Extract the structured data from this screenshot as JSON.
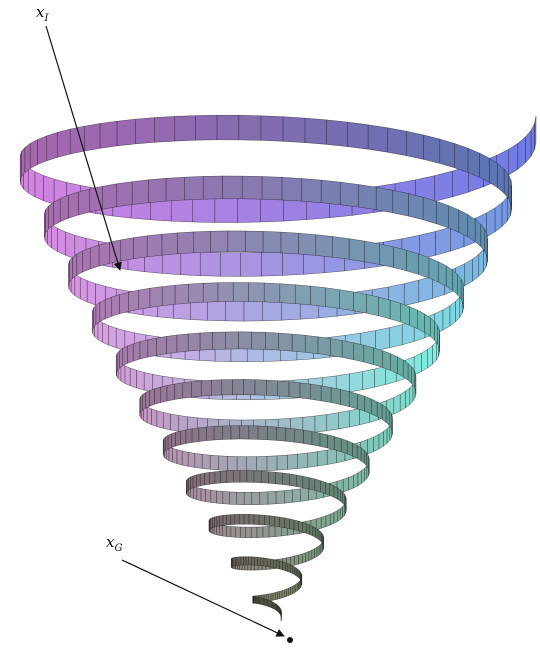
{
  "labels": {
    "start": {
      "base": "x",
      "sub": "I"
    },
    "goal": {
      "base": "x",
      "sub": "G"
    }
  },
  "colors": {
    "top_left": "#d57fe0",
    "top_right": "#6f7ae6",
    "mid_right": "#7ef0e2",
    "bottom": "#7a7a5a",
    "grid_line": "#1a1a1a"
  }
}
